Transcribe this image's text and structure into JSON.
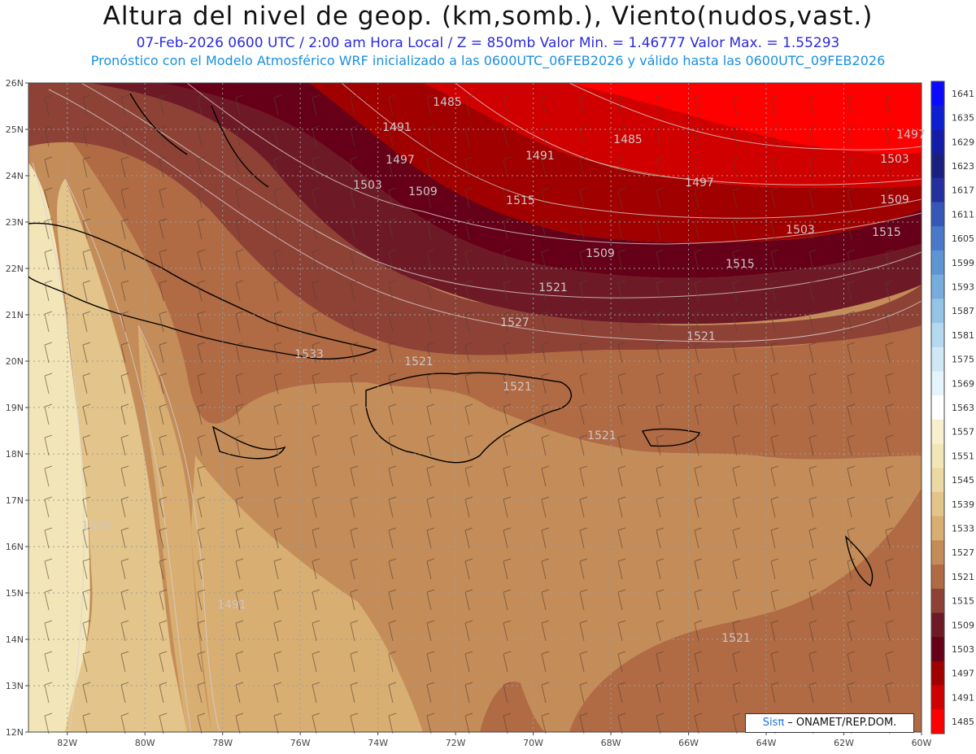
{
  "header": {
    "title": "Altura del nivel de geop. (km,somb.), Viento(nudos,vast.)",
    "subtitle": "07-Feb-2026  0600 UTC / 2:00 am Hora Local / Z = 850mb     Valor Min. = 1.46777  Valor Max. = 1.55293",
    "info": "Pronóstico con el Modelo Atmosférico WRF inicializado a las 0600UTC_06FEB2026 y válido hasta las  0600UTC_09FEB2026"
  },
  "map": {
    "lat_labels": [
      "26N",
      "25N",
      "24N",
      "23N",
      "22N",
      "21N",
      "20N",
      "19N",
      "18N",
      "17N",
      "16N",
      "15N",
      "14N",
      "13N",
      "12N"
    ],
    "lon_labels": [
      "82W",
      "80W",
      "78W",
      "76W",
      "74W",
      "72W",
      "70W",
      "68W",
      "66W",
      "64W",
      "62W",
      "60W"
    ],
    "contour_labels": [
      "1485",
      "1491",
      "1497",
      "1503",
      "1509",
      "1515",
      "1521",
      "1527",
      "1533",
      "1539",
      "1485",
      "1491",
      "1497",
      "1503",
      "1509",
      "1515",
      "1521",
      "1491",
      "1497",
      "1503",
      "1509",
      "1515",
      "1521",
      "1521",
      "1521",
      "1521"
    ],
    "colorbar": {
      "levels": [
        "1641",
        "1635",
        "1629",
        "1623",
        "1617",
        "1611",
        "1605",
        "1599",
        "1593",
        "1587",
        "1581",
        "1575",
        "1569",
        "1563",
        "1557",
        "1551",
        "1545",
        "1539",
        "1533",
        "1527",
        "1521",
        "1515",
        "1509",
        "1503",
        "1497",
        "1491",
        "1485"
      ],
      "colors": [
        "#0a0aff",
        "#0d1fd0",
        "#141da8",
        "#1a2080",
        "#2430a0",
        "#3558b8",
        "#4a78c8",
        "#5e94d4",
        "#78acdc",
        "#96c4e6",
        "#b4d8ee",
        "#cfe8f4",
        "#e4f4fa",
        "#ffffff",
        "#f8f0cc",
        "#f2e6b8",
        "#ecd8a2",
        "#e3c48a",
        "#d8ae72",
        "#c48c58",
        "#b06a44",
        "#8e4236",
        "#6e1a26",
        "#650018",
        "#a00000",
        "#d00000",
        "#ff0000"
      ]
    }
  },
  "credit": {
    "brand": "Sisπ",
    "text": " – ONAMET/REP.DOM."
  }
}
